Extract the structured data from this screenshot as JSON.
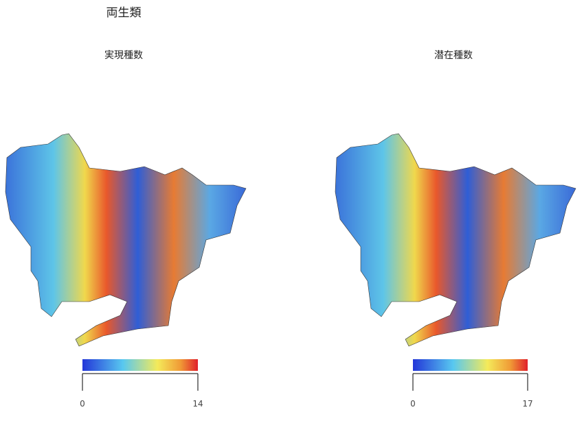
{
  "title": "両生類",
  "panels": [
    {
      "subtitle": "実現種数",
      "colorbar": {
        "min": 0,
        "max": 14
      }
    },
    {
      "subtitle": "潜在種数",
      "colorbar": {
        "min": 0,
        "max": 17
      }
    }
  ]
}
